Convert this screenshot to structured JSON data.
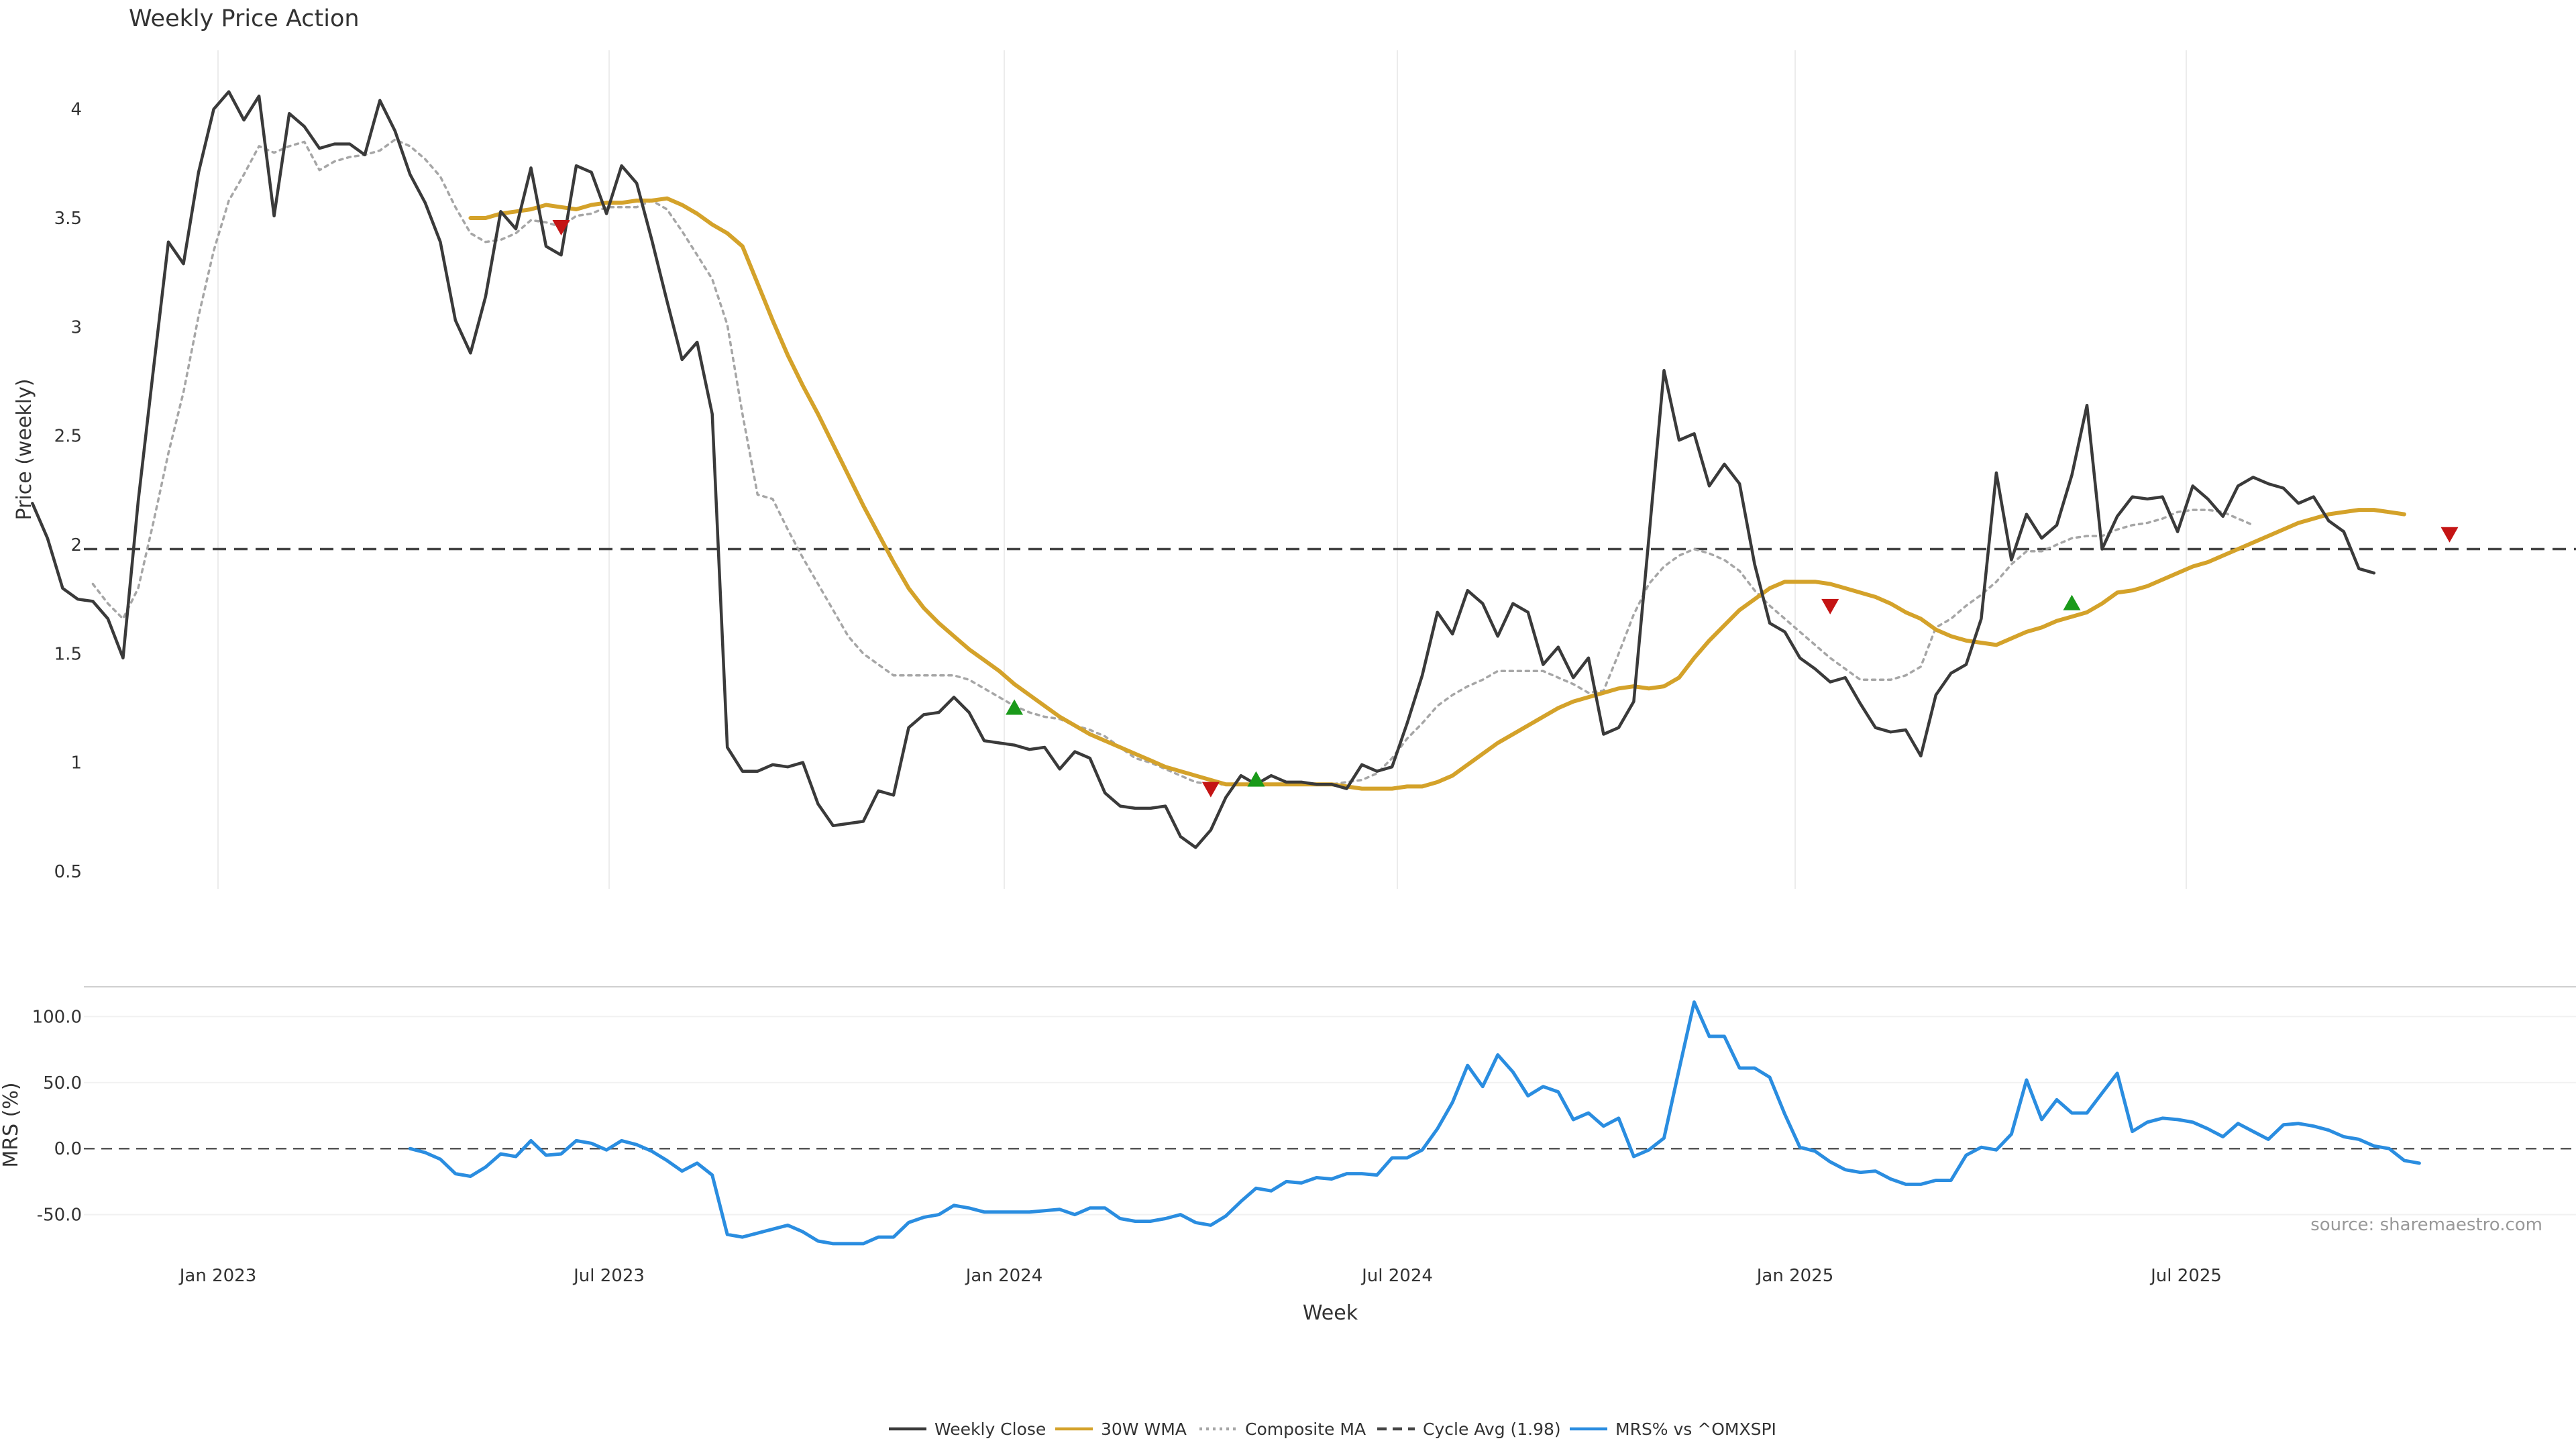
{
  "chart_data": {
    "type": "line",
    "title": "Weekly Price Action",
    "source": "source: sharemaestro.com",
    "xlabel": "Week",
    "x_ticks": [
      "Jan 2023",
      "Jul 2023",
      "Jan 2024",
      "Jul 2024",
      "Jan 2025",
      "Jul 2025"
    ],
    "x_start": "2022-10-07",
    "x_step_days": 7,
    "price_panel": {
      "ylabel": "Price (weekly)",
      "ylim": [
        0.42,
        4.27
      ],
      "y_ticks": [
        "0.5",
        "1",
        "1.5",
        "2",
        "2.5",
        "3",
        "3.5",
        "4"
      ],
      "y_tick_values": [
        0.5,
        1,
        1.5,
        2,
        2.5,
        3,
        3.5,
        4
      ],
      "cycle_avg": 1.98,
      "series": [
        {
          "name": "Weekly Close",
          "color": "#3a3a3a",
          "start_index": 0,
          "values": [
            2.19,
            2.03,
            1.8,
            1.75,
            1.74,
            1.66,
            1.48,
            2.2,
            2.8,
            3.39,
            3.29,
            3.71,
            4.0,
            4.08,
            3.95,
            4.06,
            3.51,
            3.98,
            3.92,
            3.82,
            3.84,
            3.84,
            3.79,
            4.04,
            3.9,
            3.7,
            3.57,
            3.39,
            3.03,
            2.88,
            3.14,
            3.53,
            3.45,
            3.73,
            3.37,
            3.33,
            3.74,
            3.71,
            3.52,
            3.74,
            3.66,
            3.4,
            3.12,
            2.85,
            2.93,
            2.6,
            1.07,
            0.96,
            0.96,
            0.99,
            0.98,
            1.0,
            0.81,
            0.71,
            0.72,
            0.73,
            0.87,
            0.85,
            1.16,
            1.22,
            1.23,
            1.3,
            1.23,
            1.1,
            1.09,
            1.08,
            1.06,
            1.07,
            0.97,
            1.05,
            1.02,
            0.86,
            0.8,
            0.79,
            0.79,
            0.8,
            0.66,
            0.61,
            0.69,
            0.84,
            0.94,
            0.9,
            0.94,
            0.91,
            0.91,
            0.9,
            0.9,
            0.88,
            0.99,
            0.96,
            0.98,
            1.18,
            1.4,
            1.69,
            1.59,
            1.79,
            1.73,
            1.58,
            1.73,
            1.69,
            1.45,
            1.53,
            1.39,
            1.48,
            1.13,
            1.16,
            1.28,
            2.03,
            2.8,
            2.48,
            2.51,
            2.27,
            2.37,
            2.28,
            1.91,
            1.64,
            1.6,
            1.48,
            1.43,
            1.37,
            1.39,
            1.27,
            1.16,
            1.14,
            1.15,
            1.03,
            1.31,
            1.41,
            1.45,
            1.66,
            2.33,
            1.93,
            2.14,
            2.03,
            2.09,
            2.32,
            2.64,
            1.98,
            2.13,
            2.22,
            2.21,
            2.22,
            2.06,
            2.27,
            2.21,
            2.13,
            2.27,
            2.31,
            2.28,
            2.26,
            2.19,
            2.22,
            2.11,
            2.06,
            1.89,
            1.87
          ]
        },
        {
          "name": "30W WMA",
          "color": "#d4a22a",
          "start_index": 29,
          "values": [
            3.5,
            3.5,
            3.52,
            3.53,
            3.54,
            3.56,
            3.55,
            3.54,
            3.56,
            3.57,
            3.57,
            3.58,
            3.58,
            3.59,
            3.56,
            3.52,
            3.47,
            3.43,
            3.37,
            3.2,
            3.03,
            2.87,
            2.73,
            2.6,
            2.46,
            2.32,
            2.18,
            2.05,
            1.92,
            1.8,
            1.71,
            1.64,
            1.58,
            1.52,
            1.47,
            1.42,
            1.36,
            1.31,
            1.26,
            1.21,
            1.17,
            1.13,
            1.1,
            1.07,
            1.04,
            1.01,
            0.98,
            0.96,
            0.94,
            0.92,
            0.9,
            0.9,
            0.9,
            0.9,
            0.9,
            0.9,
            0.9,
            0.9,
            0.89,
            0.88,
            0.88,
            0.88,
            0.89,
            0.89,
            0.91,
            0.94,
            0.99,
            1.04,
            1.09,
            1.13,
            1.17,
            1.21,
            1.25,
            1.28,
            1.3,
            1.32,
            1.34,
            1.35,
            1.34,
            1.35,
            1.39,
            1.48,
            1.56,
            1.63,
            1.7,
            1.75,
            1.8,
            1.83,
            1.83,
            1.83,
            1.82,
            1.8,
            1.78,
            1.76,
            1.73,
            1.69,
            1.66,
            1.61,
            1.58,
            1.56,
            1.55,
            1.54,
            1.57,
            1.6,
            1.62,
            1.65,
            1.67,
            1.69,
            1.73,
            1.78,
            1.79,
            1.81,
            1.84,
            1.87,
            1.9,
            1.92,
            1.95,
            1.98,
            2.01,
            2.04,
            2.07,
            2.1,
            2.12,
            2.14,
            2.15,
            2.16,
            2.16,
            2.15,
            2.14
          ]
        },
        {
          "name": "Composite MA",
          "color": "#a6a6a6",
          "start_index": 4,
          "values": [
            1.82,
            1.73,
            1.66,
            1.8,
            2.1,
            2.42,
            2.7,
            3.05,
            3.35,
            3.58,
            3.7,
            3.83,
            3.8,
            3.83,
            3.85,
            3.72,
            3.76,
            3.78,
            3.79,
            3.81,
            3.86,
            3.83,
            3.77,
            3.69,
            3.55,
            3.43,
            3.39,
            3.4,
            3.43,
            3.49,
            3.48,
            3.46,
            3.51,
            3.52,
            3.55,
            3.55,
            3.55,
            3.58,
            3.54,
            3.44,
            3.33,
            3.22,
            3.01,
            2.6,
            2.23,
            2.21,
            2.07,
            1.94,
            1.82,
            1.7,
            1.58,
            1.5,
            1.45,
            1.4,
            1.4,
            1.4,
            1.4,
            1.4,
            1.38,
            1.34,
            1.3,
            1.26,
            1.23,
            1.21,
            1.2,
            1.17,
            1.15,
            1.12,
            1.07,
            1.02,
            1.0,
            0.97,
            0.94,
            0.91,
            0.9,
            0.9,
            0.9,
            0.9,
            0.9,
            0.9,
            0.91,
            0.9,
            0.9,
            0.91,
            0.92,
            0.95,
            1.02,
            1.11,
            1.18,
            1.26,
            1.31,
            1.35,
            1.38,
            1.42,
            1.42,
            1.42,
            1.42,
            1.39,
            1.36,
            1.32,
            1.33,
            1.5,
            1.68,
            1.82,
            1.9,
            1.95,
            1.98,
            1.96,
            1.93,
            1.88,
            1.79,
            1.72,
            1.66,
            1.6,
            1.54,
            1.48,
            1.43,
            1.38,
            1.38,
            1.38,
            1.4,
            1.44,
            1.62,
            1.66,
            1.72,
            1.77,
            1.83,
            1.91,
            1.97,
            1.97,
            2.0,
            2.03,
            2.04,
            2.04,
            2.07,
            2.09,
            2.1,
            2.12,
            2.15,
            2.16,
            2.16,
            2.15,
            2.12,
            2.09
          ]
        }
      ],
      "buy_signals": [
        {
          "week": 65,
          "value": 1.25
        },
        {
          "week": 81,
          "value": 0.92
        },
        {
          "week": 135,
          "value": 1.73
        }
      ],
      "sell_signals": [
        {
          "week": 35,
          "value": 3.46
        },
        {
          "week": 78,
          "value": 0.88
        },
        {
          "week": 119,
          "value": 1.72
        },
        {
          "week": 160,
          "value": 2.05
        }
      ]
    },
    "mrs_panel": {
      "ylabel": "MRS (%)",
      "ylim": [
        -70,
        120
      ],
      "y_ticks": [
        "-50.0",
        "0.0",
        "50.0",
        "100.0"
      ],
      "y_tick_values": [
        -50,
        0,
        50,
        100
      ],
      "zero_line": 0,
      "series": [
        {
          "name": "MRS% vs ^OMXSPI",
          "color": "#2a8de0",
          "start_index": 25,
          "values": [
            0,
            -3,
            -8,
            -19,
            -21,
            -14,
            -4,
            -6,
            6,
            -5,
            -4,
            6,
            4,
            -1,
            6,
            3,
            -2,
            -9,
            -17,
            -11,
            -20,
            -65,
            -67,
            -64,
            -61,
            -58,
            -63,
            -70,
            -72,
            -72,
            -72,
            -67,
            -67,
            -56,
            -52,
            -50,
            -43,
            -45,
            -48,
            -48,
            -48,
            -48,
            -47,
            -46,
            -50,
            -45,
            -45,
            -53,
            -55,
            -55,
            -53,
            -50,
            -56,
            -58,
            -51,
            -40,
            -30,
            -32,
            -25,
            -26,
            -22,
            -23,
            -19,
            -19,
            -20,
            -7,
            -7,
            -1,
            15,
            35,
            63,
            47,
            71,
            58,
            40,
            47,
            43,
            22,
            27,
            17,
            23,
            -6,
            -1,
            8,
            60,
            111,
            85,
            85,
            61,
            61,
            54,
            26,
            1,
            -2,
            -10,
            -16,
            -18,
            -17,
            -23,
            -27,
            -27,
            -24,
            -24,
            -5,
            1,
            -1,
            11,
            52,
            22,
            37,
            27,
            27,
            42,
            57,
            13,
            20,
            23,
            22,
            20,
            15,
            9,
            19,
            13,
            7,
            18,
            19,
            17,
            14,
            9,
            7,
            2,
            0,
            -9,
            -11
          ]
        }
      ]
    },
    "legend": {
      "placement": "bottom-center",
      "items": [
        {
          "label": "Weekly Close",
          "color": "#3a3a3a",
          "style": "solid"
        },
        {
          "label": "30W WMA",
          "color": "#d4a22a",
          "style": "solid"
        },
        {
          "label": "Composite MA",
          "color": "#a6a6a6",
          "style": "dotted"
        },
        {
          "label": "Cycle Avg (1.98)",
          "color": "#444444",
          "style": "dashed"
        },
        {
          "label": "MRS% vs ^OMXSPI",
          "color": "#2a8de0",
          "style": "solid"
        }
      ]
    },
    "colors": {
      "buy_signal": "#1a9a1a",
      "sell_signal": "#c41414",
      "grid": "#ececec",
      "zero_line": "#555555"
    }
  }
}
